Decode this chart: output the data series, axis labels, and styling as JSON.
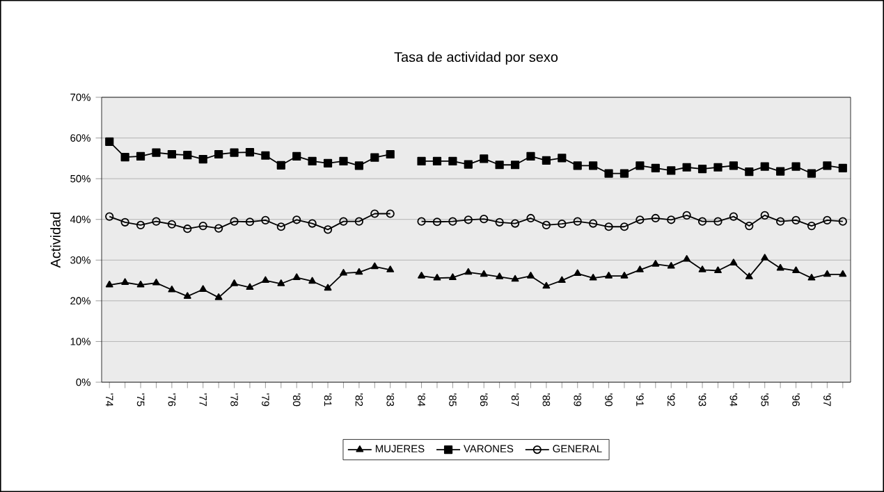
{
  "chart_data": {
    "type": "line",
    "title": "Tasa de actividad por sexo",
    "ylabel": "Actividad",
    "categories": [
      "'74",
      null,
      "'75",
      null,
      "'76",
      null,
      "'77",
      null,
      "'78",
      null,
      "'79",
      null,
      "'80",
      null,
      "'81",
      null,
      "'82",
      null,
      "'83",
      null,
      "'84",
      null,
      "'85",
      null,
      "'86",
      null,
      "'87",
      null,
      "'88",
      null,
      "'89",
      null,
      "'90",
      null,
      "'91",
      null,
      "'92",
      null,
      "'93",
      null,
      "'94",
      null,
      "'95",
      null,
      "'96",
      null,
      "'97",
      null
    ],
    "series": [
      {
        "name": "MUJERES",
        "color": "#000000",
        "marker": "triangle",
        "values": [
          23.9,
          24.5,
          23.9,
          24.4,
          22.7,
          21.1,
          22.8,
          20.8,
          24.2,
          23.3,
          25.0,
          24.2,
          25.7,
          24.8,
          23.1,
          26.8,
          27.0,
          28.4,
          27.6,
          null,
          26.1,
          25.6,
          25.7,
          27.0,
          26.5,
          25.9,
          25.3,
          26.1,
          23.6,
          25.0,
          26.7,
          25.6,
          26.1,
          26.1,
          27.6,
          29.0,
          28.5,
          30.2,
          27.6,
          27.4,
          29.3,
          25.9,
          30.5,
          28.0,
          27.4,
          25.6,
          26.5,
          26.5
        ]
      },
      {
        "name": "VARONES",
        "color": "#000000",
        "marker": "square",
        "values": [
          59.1,
          55.3,
          55.5,
          56.4,
          56.0,
          55.8,
          54.8,
          56.0,
          56.4,
          56.5,
          55.7,
          53.3,
          55.5,
          54.3,
          53.8,
          54.3,
          53.2,
          55.2,
          56.0,
          null,
          54.3,
          54.3,
          54.3,
          53.5,
          54.9,
          53.4,
          53.4,
          55.5,
          54.5,
          55.1,
          53.2,
          53.2,
          51.3,
          51.3,
          53.2,
          52.6,
          52.0,
          52.8,
          52.4,
          52.8,
          53.2,
          51.7,
          53.0,
          51.8,
          53.0,
          51.3,
          53.2,
          52.6
        ]
      },
      {
        "name": "GENERAL",
        "color": "#000000",
        "marker": "circle",
        "values": [
          40.7,
          39.3,
          38.6,
          39.5,
          38.8,
          37.7,
          38.4,
          37.8,
          39.5,
          39.4,
          39.8,
          38.2,
          39.9,
          39.0,
          37.5,
          39.5,
          39.5,
          41.4,
          41.4,
          null,
          39.5,
          39.4,
          39.5,
          39.9,
          40.1,
          39.3,
          39.0,
          40.3,
          38.6,
          38.9,
          39.5,
          39.0,
          38.2,
          38.2,
          39.9,
          40.3,
          39.9,
          41.0,
          39.5,
          39.5,
          40.7,
          38.4,
          41.0,
          39.5,
          39.8,
          38.4,
          39.8,
          39.5
        ]
      }
    ],
    "ylim": [
      0,
      70
    ],
    "yticks": [
      {
        "value": 0,
        "label": "0%"
      },
      {
        "value": 10,
        "label": "10%"
      },
      {
        "value": 20,
        "label": "20%"
      },
      {
        "value": 30,
        "label": "30%"
      },
      {
        "value": 40,
        "label": "40%"
      },
      {
        "value": 50,
        "label": "50%"
      },
      {
        "value": 60,
        "label": "60%"
      },
      {
        "value": 70,
        "label": "70%"
      }
    ],
    "grid": "y",
    "legend": "bottom",
    "line_style": "solid"
  }
}
